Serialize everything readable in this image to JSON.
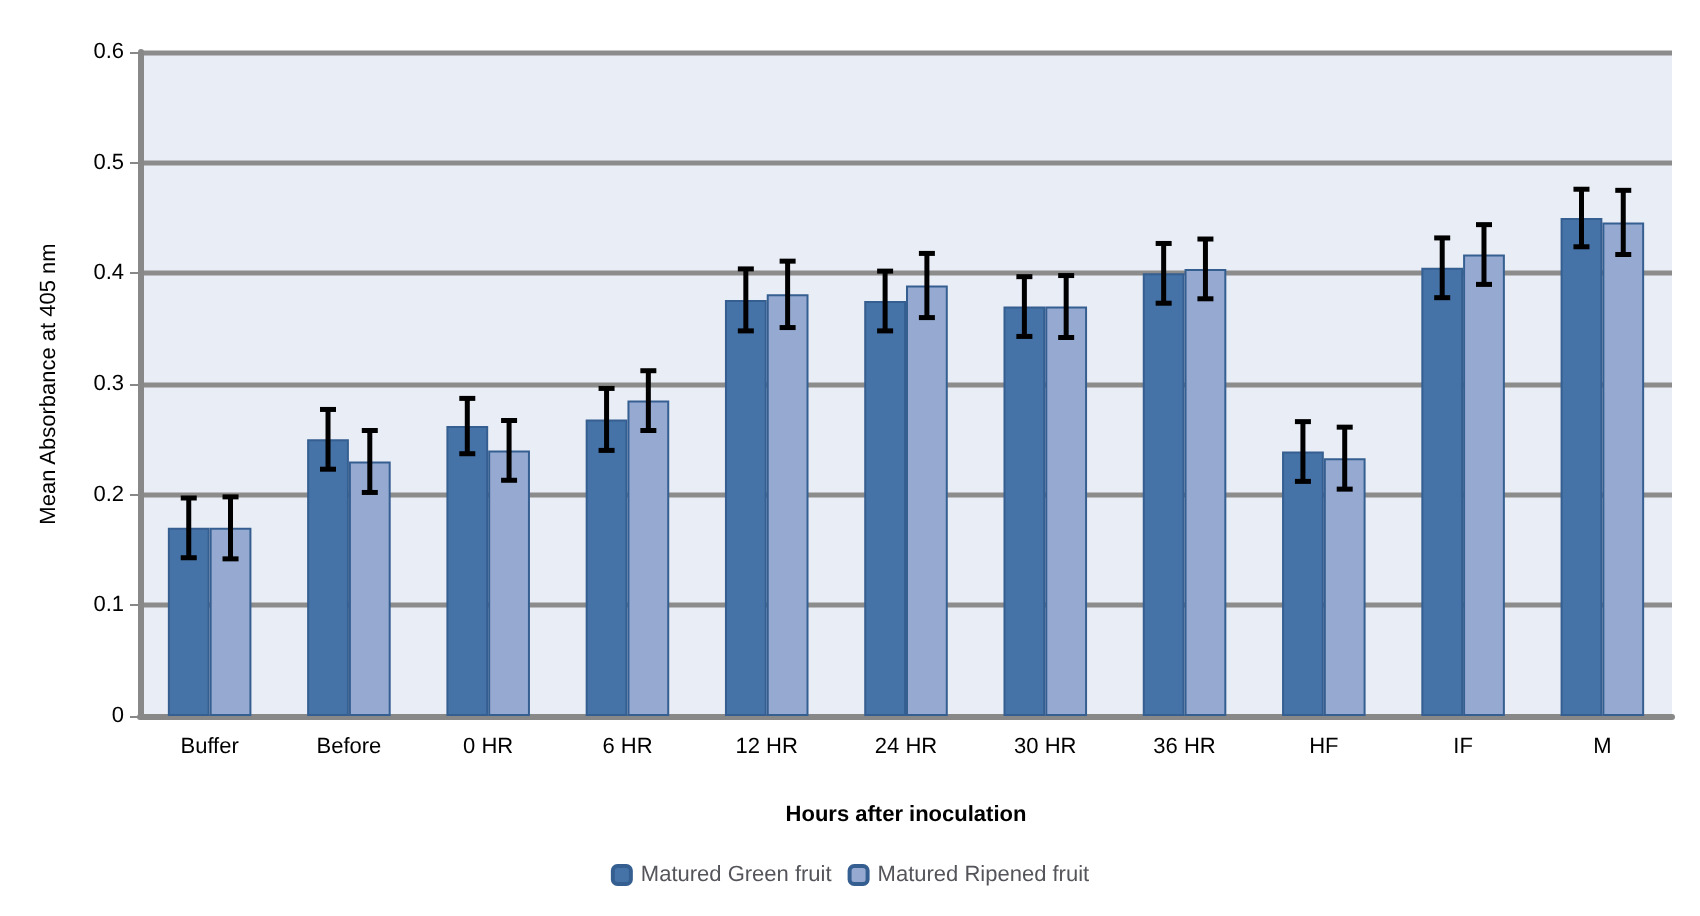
{
  "chart_data": {
    "type": "bar",
    "xlabel": "Hours after inoculation",
    "ylabel": "Mean Absorbance at 405 nm",
    "categories": [
      "Buffer",
      "Before",
      "0 HR",
      "6 HR",
      "12 HR",
      "24 HR",
      "30 HR",
      "36 HR",
      "HF",
      "IF",
      "M"
    ],
    "series": [
      {
        "name": "Matured Green fruit",
        "color": "#4572a7",
        "values": [
          0.17,
          0.25,
          0.262,
          0.268,
          0.376,
          0.375,
          0.37,
          0.4,
          0.239,
          0.405,
          0.45
        ],
        "errors": [
          0.027,
          0.027,
          0.025,
          0.028,
          0.028,
          0.027,
          0.027,
          0.027,
          0.027,
          0.027,
          0.026
        ]
      },
      {
        "name": "Matured Ripened fruit",
        "color": "#95a9d1",
        "values": [
          0.17,
          0.23,
          0.24,
          0.285,
          0.381,
          0.389,
          0.37,
          0.404,
          0.233,
          0.417,
          0.446
        ],
        "errors": [
          0.028,
          0.028,
          0.027,
          0.027,
          0.03,
          0.029,
          0.028,
          0.027,
          0.028,
          0.027,
          0.029
        ]
      }
    ],
    "ylim": [
      0,
      0.6
    ],
    "yticks": [
      0,
      0.1,
      0.2,
      0.3,
      0.4,
      0.5,
      0.6
    ],
    "grid": "y",
    "legend": "bottom"
  }
}
